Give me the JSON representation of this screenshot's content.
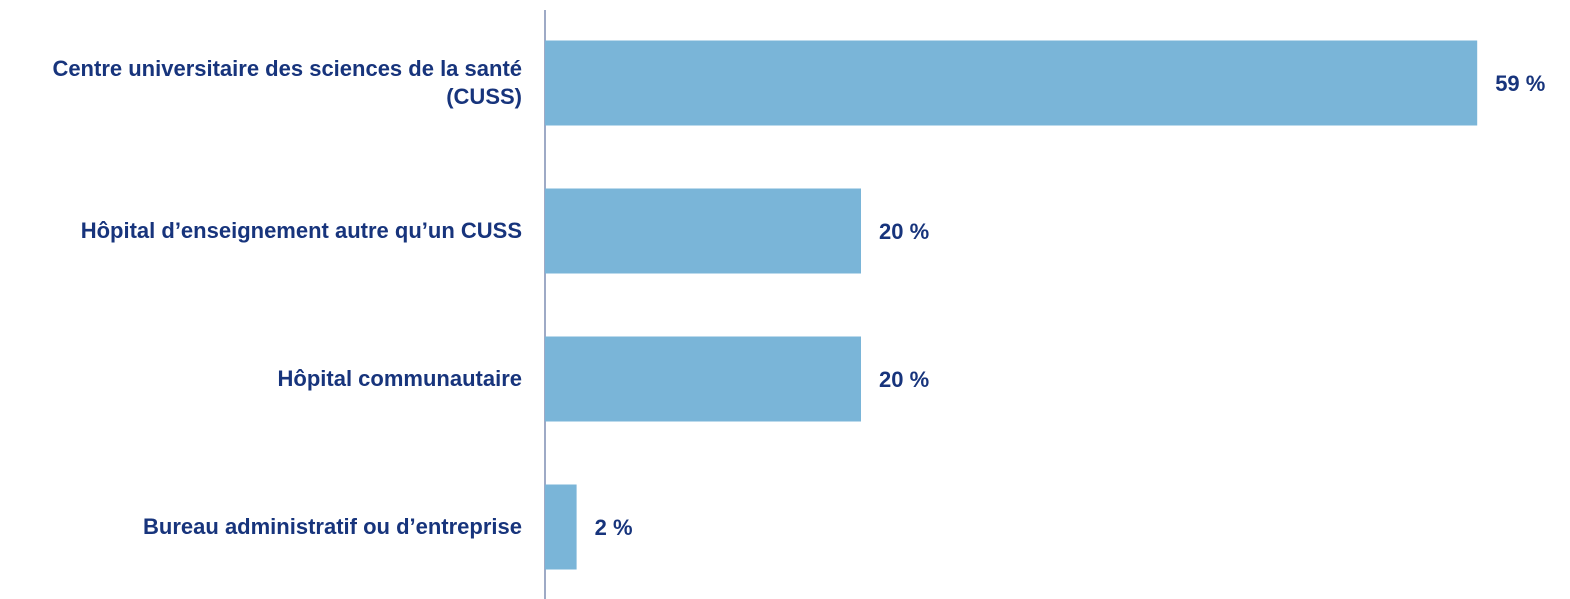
{
  "chart_data": {
    "type": "bar",
    "orientation": "horizontal",
    "categories": [
      "Centre universitaire des sciences de la santé (CUSS)",
      "Hôpital d’enseignement autre qu’un CUSS",
      "Hôpital communautaire",
      "Bureau administratif ou d’entreprise"
    ],
    "values": [
      59,
      20,
      20,
      2
    ],
    "value_labels": [
      "59 %",
      "20 %",
      "20 %",
      "2 %"
    ],
    "color": "#7ab5d8",
    "xlim": [
      0,
      60
    ]
  }
}
